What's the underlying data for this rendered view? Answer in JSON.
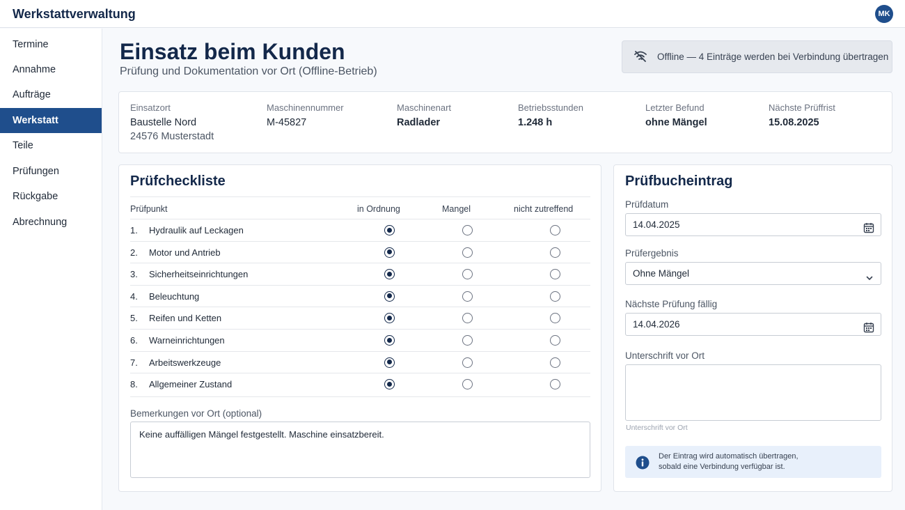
{
  "app": {
    "title": "Werkstattverwaltung",
    "user_initials": "MK"
  },
  "sidebar": {
    "items": [
      {
        "label": "Termine",
        "active": false
      },
      {
        "label": "Annahme",
        "active": false
      },
      {
        "label": "Aufträge",
        "active": false
      },
      {
        "label": "Werkstatt",
        "active": true
      },
      {
        "label": "Teile",
        "active": false
      },
      {
        "label": "Prüfungen",
        "active": false
      },
      {
        "label": "Rückgabe",
        "active": false
      },
      {
        "label": "Abrechnung",
        "active": false
      }
    ]
  },
  "header": {
    "title": "Einsatz beim Kunden",
    "subtitle": "Prüfung und Dokumentation vor Ort (Offline-Betrieb)",
    "offline_notice": "Offline — 4 Einträge werden bei Verbindung übertragen"
  },
  "info": {
    "location": {
      "label": "Einsatzort",
      "line1": "Baustelle Nord",
      "line2": "24576 Musterstadt"
    },
    "machine_number": {
      "label": "Maschinennummer",
      "value": "M-45827"
    },
    "machine_type": {
      "label": "Maschinenart",
      "value": "Radlader"
    },
    "operating_hours": {
      "label": "Betriebsstunden",
      "value": "1.248 h"
    },
    "last_finding": {
      "label": "Letzter Befund",
      "value": "ohne Mängel"
    },
    "next_deadline": {
      "label": "Nächste Prüffrist",
      "value": "15.08.2025"
    }
  },
  "checklist": {
    "title": "Prüfcheckliste",
    "columns": {
      "item": "Prüfpunkt",
      "ok": "in Ordnung",
      "defect": "Mangel",
      "na": "nicht zutreffend"
    },
    "rows": [
      {
        "num": "1.",
        "label": "Hydraulik auf Leckagen",
        "state": "ok"
      },
      {
        "num": "2.",
        "label": "Motor und Antrieb",
        "state": "ok"
      },
      {
        "num": "3.",
        "label": "Sicherheitseinrichtungen",
        "state": "ok"
      },
      {
        "num": "4.",
        "label": "Beleuchtung",
        "state": "ok"
      },
      {
        "num": "5.",
        "label": "Reifen und Ketten",
        "state": "ok"
      },
      {
        "num": "6.",
        "label": "Warneinrichtungen",
        "state": "ok"
      },
      {
        "num": "7.",
        "label": "Arbeitswerkzeuge",
        "state": "ok"
      },
      {
        "num": "8.",
        "label": "Allgemeiner Zustand",
        "state": "ok"
      }
    ],
    "remarks_label": "Bemerkungen vor Ort (optional)",
    "remarks_value": "Keine auffälligen Mängel festgestellt. Maschine einsatzbereit."
  },
  "entry": {
    "title": "Prüfbucheintrag",
    "date_label": "Prüfdatum",
    "date_value": "14.04.2025",
    "result_label": "Prüfergebnis",
    "result_value": "Ohne Mängel",
    "next_label": "Nächste Prüfung fällig",
    "next_value": "14.04.2026",
    "signature_label": "Unterschrift vor Ort",
    "signature_caption": "Unterschrift vor Ort",
    "sync_info_line1": "Der Eintrag wird automatisch übertragen,",
    "sync_info_line2": "sobald eine Verbindung verfügbar ist."
  },
  "icons": {
    "offline": "wifi-off-icon",
    "calendar": "calendar-icon",
    "dropdown": "chevron-down-icon",
    "info": "info-icon"
  },
  "colors": {
    "primary": "#1f4e8c",
    "heading": "#13284a",
    "info_bg": "#e8f0fb"
  }
}
